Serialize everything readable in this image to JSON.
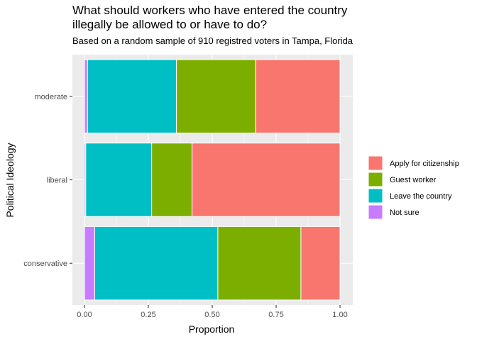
{
  "chart_data": {
    "type": "bar",
    "orientation": "horizontal",
    "stacked": true,
    "title": "What should workers who have entered the country illegally be allowed to or have to do?",
    "title_lines": [
      "What should workers who have entered the country",
      "illegally be allowed to or have to do?"
    ],
    "subtitle": "Based on a random sample of 910 registred voters in Tampa, Florida",
    "xlabel": "Proportion",
    "ylabel": "Political Ideology",
    "xlim": [
      0,
      1
    ],
    "xticks": [
      "0.00",
      "0.25",
      "0.50",
      "0.75",
      "1.00"
    ],
    "xtick_values": [
      0,
      0.25,
      0.5,
      0.75,
      1
    ],
    "categories": [
      "moderate",
      "liberal",
      "conservative"
    ],
    "grid": true,
    "legend_position": "right",
    "series": [
      {
        "name": "Not sure",
        "color": "#C77CFF",
        "values": [
          0.012,
          0.005,
          0.04
        ]
      },
      {
        "name": "Leave the country",
        "color": "#00BFC4",
        "values": [
          0.348,
          0.258,
          0.482
        ]
      },
      {
        "name": "Guest worker",
        "color": "#7CAE00",
        "values": [
          0.31,
          0.158,
          0.325
        ]
      },
      {
        "name": "Apply for citizenship",
        "color": "#F8766D",
        "values": [
          0.33,
          0.579,
          0.153
        ]
      }
    ],
    "legend": [
      "Apply for citizenship",
      "Guest worker",
      "Leave the country",
      "Not sure"
    ]
  }
}
